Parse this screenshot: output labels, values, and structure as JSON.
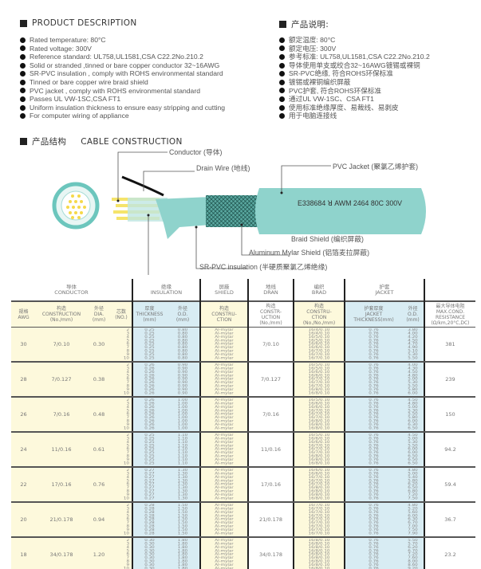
{
  "en": {
    "title": "PRODUCT DESCRIPTION",
    "items": [
      "Rated temperature: 80°C",
      "Rated voltage: 300V",
      "Reference standard: UL758,UL1581,CSA C22.2No.210.2",
      "Solid or stranded ,tinned or bare copper conductor 32~16AWG",
      "SR-PVC insulation , comply with ROHS environmental standard",
      "Tinned or bare copper wire braid shield",
      "PVC jacket , comply with ROHS environmental standard",
      "Passes UL VW-1SC,CSA FT1",
      "Uniform insulation thickness to ensure easy stripping and cutting",
      "For computer wiring of appliance"
    ]
  },
  "cn": {
    "title": "产品说明:",
    "items": [
      "额定温度: 80°C",
      "额定电压: 300V",
      "参考标准: UL758,UL1581,CSA C22.2No.210.2",
      "导体使用单支或绞合32~16AWG镀锡或裸铜",
      "SR-PVC绝缘, 符合ROHS环保标准",
      "镀锡或裸铜编织屏蔽",
      "PVC护套, 符合ROHS环保标准",
      "通过UL VW-1SC、CSA FT1",
      "使用标准绝缘厚度、易裁线、易剥皮",
      "用于电脑连接线"
    ]
  },
  "construction": {
    "title_cn": "产品结构",
    "title_en": "CABLE CONSTRUCTION",
    "labels": {
      "conductor": "Conductor (导体)",
      "drain": "Drain Wire (地线)",
      "jacket": "PVC Jacket (聚氯乙烯护套)",
      "braid": "Braid Shield (编织屏蔽)",
      "mylar": "Aluminum Mylar Shield (铝箔麦拉屏蔽)",
      "insulation": "SR-PVC insulation (半硬质聚氯乙烯绝缘)"
    },
    "marking": "E338684 ꓤ AWM 2464 80C 300V",
    "colors": {
      "jacket": "#8fd3cc",
      "conductor": "#f7e36a"
    }
  },
  "table": {
    "groups": [
      "导体\nCONDUCTOR",
      "绝缘\nINSULATION",
      "屏蔽\nSHIELD",
      "地线\nDRAN",
      "编织\nBRAD",
      "护套\nJACKET"
    ],
    "cols": [
      "规格\nAWG",
      "构造\nCONSTRUCTION\n(No./mm)",
      "外径\nDIA.\n(mm)",
      "芯数\n(NO.)",
      "厚度\nTHICKNESS\n(mm)",
      "外径\nO.D.\n(mm)",
      "构造\nCONSTRU-\nCTION",
      "构造\nCONSTR-\nUCTION\n(No./mm)",
      "构造\nCONSTRU-\nCTION\n(No./No./mm)",
      "护套厚度\nJACKET\nTHICKNESS(mm)",
      "外径\nO.D.\n(mm)",
      "最大导体电阻\nMAX.COND.\nRESISTANCE\n(Ω/km,20°C,DC)"
    ],
    "rows": [
      {
        "awg": "30",
        "cons": "7/0.10",
        "dia": "0.30",
        "ins_t": "0.25",
        "ins_od": "0.80",
        "drain": "7/0.10",
        "braid": [
          "16/4/0.10",
          "16/4/0.10",
          "16/5/0.10",
          "16/5/0.10",
          "16/6/0.10",
          "16/6/0.10",
          "16/7/0.10",
          "16/7/0.10",
          "16/7/0.10"
        ],
        "jt": "0.76",
        "jod": [
          "3.80",
          "4.00",
          "4.20",
          "4.50",
          "4.70",
          "4.90",
          "5.10",
          "5.30",
          "5.50"
        ],
        "res": "381"
      },
      {
        "awg": "28",
        "cons": "7/0.127",
        "dia": "0.38",
        "ins_t": "0.26",
        "ins_od": "0.90",
        "drain": "7/0.127",
        "braid": [
          "16/5/0.10",
          "16/5/0.10",
          "16/6/0.10",
          "16/6/0.10",
          "16/7/0.10",
          "16/7/0.10",
          "16/7/0.10",
          "16/8/0.10",
          "16/8/0.10"
        ],
        "jt": "0.76",
        "jod": [
          "4.00",
          "4.30",
          "4.50",
          "4.80",
          "5.00",
          "5.30",
          "5.50",
          "5.80",
          "6.00"
        ],
        "res": "239"
      },
      {
        "awg": "26",
        "cons": "7/0.16",
        "dia": "0.48",
        "ins_t": "0.26",
        "ins_od": "1.00",
        "drain": "7/0.16",
        "braid": [
          "16/5/0.10",
          "16/6/0.10",
          "16/6/0.10",
          "16/7/0.10",
          "16/7/0.10",
          "16/7/0.10",
          "16/8/0.10",
          "16/8/0.10",
          "16/8/0.10"
        ],
        "jt": "0.76",
        "jod": [
          "4.50",
          "4.80",
          "5.00",
          "5.30",
          "5.50",
          "5.80",
          "6.00",
          "6.30",
          "6.50"
        ],
        "res": "150"
      },
      {
        "awg": "24",
        "cons": "11/0.16",
        "dia": "0.61",
        "ins_t": "0.25",
        "ins_od": "1.10",
        "drain": "11/0.16",
        "braid": [
          "16/5/0.10",
          "16/6/0.10",
          "16/6/0.10",
          "16/7/0.10",
          "16/7/0.10",
          "16/7/0.10",
          "16/8/0.10",
          "16/8/0.10",
          "16/8/0.10"
        ],
        "jt": "0.76",
        "jod": [
          "4.50",
          "5.00",
          "5.30",
          "5.50",
          "6.00",
          "6.00",
          "6.50",
          "6.50",
          "6.50"
        ],
        "res": "94.2"
      },
      {
        "awg": "22",
        "cons": "17/0.16",
        "dia": "0.76",
        "ins_t": "0.27",
        "ins_od": "1.30",
        "drain": "17/0.16",
        "braid": [
          "16/6/0.10",
          "16/6/0.10",
          "16/7/0.10",
          "16/7/0.10",
          "16/7/0.10",
          "16/8/0.10",
          "16/8/0.10",
          "16/8/0.10",
          "16/8/0.10"
        ],
        "jt": "0.76",
        "jod": [
          "4.80",
          "5.00",
          "5.40",
          "5.80",
          "6.20",
          "6.50",
          "6.80",
          "7.20",
          "7.50"
        ],
        "res": "59.4"
      },
      {
        "awg": "20",
        "cons": "21/0.178",
        "dia": "0.94",
        "ins_t": "0.28",
        "ins_od": "1.50",
        "drain": "21/0.178",
        "braid": [
          "16/7/0.10",
          "16/7/0.10",
          "16/7/0.10",
          "16/7/0.10",
          "16/7/0.10",
          "16/7/0.10",
          "16/7/0.10",
          "16/7/0.10",
          "16/7/0.10"
        ],
        "jt": "0.76",
        "jod": [
          "4.80",
          "5.20",
          "5.60",
          "6.00",
          "6.30",
          "6.70",
          "7.00",
          "7.50",
          "7.90"
        ],
        "res": "36.7"
      },
      {
        "awg": "18",
        "cons": "34/0.178",
        "dia": "1.20",
        "ins_t": "0.30",
        "ins_od": "1.80",
        "drain": "34/0.178",
        "braid": [
          "16/8/0.10",
          "16/8/0.10",
          "16/8/0.10",
          "16/8/0.10",
          "16/8/0.10",
          "16/8/0.10",
          "16/8/0.10",
          "16/8/0.10",
          "16/8/0.10"
        ],
        "jt": "0.76",
        "jod": [
          "5.50",
          "5.70",
          "6.20",
          "6.70",
          "7.20",
          "7.60",
          "8.00",
          "8.60",
          "9.20"
        ],
        "res": "23.2"
      }
    ],
    "cores": [
      "2",
      "3",
      "4",
      "5",
      "6",
      "7",
      "8",
      "9",
      "10"
    ],
    "shield": "Al-mylar"
  }
}
